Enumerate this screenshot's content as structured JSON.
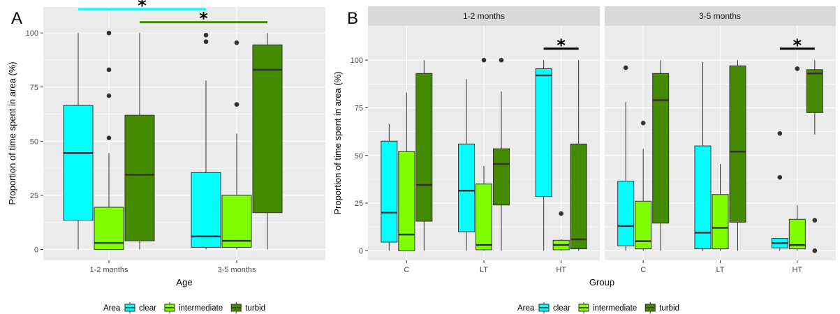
{
  "colors": {
    "panel_bg": "#ebebeb",
    "grid": "#ffffff",
    "strip_bg": "#d9d9d9",
    "box_outline": "#333333",
    "median": "#333333",
    "outlier": "#333333"
  },
  "legend": {
    "title": "Area",
    "items": [
      {
        "label": "clear",
        "color": "#00ffff"
      },
      {
        "label": "intermediate",
        "color": "#7fff00"
      },
      {
        "label": "turbid",
        "color": "#458b00"
      }
    ]
  },
  "chart_data": [
    {
      "panel": "A",
      "type": "boxplot",
      "xlabel": "Age",
      "ylabel": "Proportion of time spent in area (%)",
      "ylim": [
        -5,
        112
      ],
      "yticks": [
        0,
        25,
        50,
        75,
        100
      ],
      "categories": [
        "1-2 months",
        "3-5 months"
      ],
      "groups": [
        {
          "category": "1-2 months",
          "area": "clear",
          "color": "#00ffff",
          "min": 0,
          "q1": 13.5,
          "median": 44.5,
          "q3": 66.5,
          "max": 100,
          "outliers": []
        },
        {
          "category": "1-2 months",
          "area": "intermediate",
          "color": "#7fff00",
          "min": 0,
          "q1": 0,
          "median": 3,
          "q3": 19.5,
          "max": 44.5,
          "outliers": [
            51.5,
            71,
            83,
            100
          ]
        },
        {
          "category": "1-2 months",
          "area": "turbid",
          "color": "#458b00",
          "min": 0,
          "q1": 4,
          "median": 34.5,
          "q3": 62,
          "max": 100,
          "outliers": []
        },
        {
          "category": "3-5 months",
          "area": "clear",
          "color": "#00ffff",
          "min": 0,
          "q1": 1,
          "median": 6,
          "q3": 35.5,
          "max": 78,
          "outliers": [
            96,
            99
          ]
        },
        {
          "category": "3-5 months",
          "area": "intermediate",
          "color": "#7fff00",
          "min": 0,
          "q1": 1,
          "median": 4,
          "q3": 25,
          "max": 53.5,
          "outliers": [
            67,
            95.5
          ]
        },
        {
          "category": "3-5 months",
          "area": "turbid",
          "color": "#458b00",
          "min": 0,
          "q1": 17,
          "median": 83,
          "q3": 94.5,
          "max": 100,
          "outliers": []
        }
      ],
      "significance": [
        {
          "label": "*",
          "from_group": 0,
          "to_group": 3,
          "y": 111,
          "color": "#00ffff"
        },
        {
          "label": "*",
          "from_group": 2,
          "to_group": 5,
          "y": 105,
          "color": "#458b00"
        }
      ]
    },
    {
      "panel": "B",
      "type": "boxplot",
      "xlabel": "Group",
      "ylabel": "Proportion of time spent in area (%)",
      "ylim": [
        -5,
        118
      ],
      "yticks": [
        0,
        25,
        50,
        75,
        100
      ],
      "facets": [
        {
          "title": "1-2 months",
          "categories": [
            "C",
            "LT",
            "HT"
          ],
          "groups": [
            {
              "category": "C",
              "area": "clear",
              "color": "#00ffff",
              "min": 0,
              "q1": 4.5,
              "median": 20,
              "q3": 57.5,
              "max": 66.5,
              "outliers": []
            },
            {
              "category": "C",
              "area": "intermediate",
              "color": "#7fff00",
              "min": 0,
              "q1": 0,
              "median": 8.5,
              "q3": 52,
              "max": 83,
              "outliers": []
            },
            {
              "category": "C",
              "area": "turbid",
              "color": "#458b00",
              "min": 0,
              "q1": 15.5,
              "median": 34.5,
              "q3": 93,
              "max": 100,
              "outliers": []
            },
            {
              "category": "LT",
              "area": "clear",
              "color": "#00ffff",
              "min": 0,
              "q1": 10,
              "median": 31.5,
              "q3": 56,
              "max": 90,
              "outliers": []
            },
            {
              "category": "LT",
              "area": "intermediate",
              "color": "#7fff00",
              "min": 0,
              "q1": 0.5,
              "median": 3,
              "q3": 35,
              "max": 44.5,
              "outliers": [
                100
              ]
            },
            {
              "category": "LT",
              "area": "turbid",
              "color": "#458b00",
              "min": 0,
              "q1": 24,
              "median": 45.5,
              "q3": 53.5,
              "max": 83.5,
              "outliers": [
                100
              ]
            },
            {
              "category": "HT",
              "area": "clear",
              "color": "#00ffff",
              "min": 0,
              "q1": 28.5,
              "median": 92,
              "q3": 95.5,
              "max": 100,
              "outliers": []
            },
            {
              "category": "HT",
              "area": "intermediate",
              "color": "#7fff00",
              "min": 0,
              "q1": 0.5,
              "median": 3,
              "q3": 5.5,
              "max": 6,
              "outliers": [
                19.5
              ]
            },
            {
              "category": "HT",
              "area": "turbid",
              "color": "#458b00",
              "min": 0,
              "q1": 1,
              "median": 6,
              "q3": 56,
              "max": 100,
              "outliers": []
            }
          ],
          "significance": [
            {
              "label": "*",
              "from_group": 6,
              "to_group": 8,
              "y": 106,
              "color": "#000000"
            }
          ]
        },
        {
          "title": "3-5 months",
          "categories": [
            "C",
            "LT",
            "HT"
          ],
          "groups": [
            {
              "category": "C",
              "area": "clear",
              "color": "#00ffff",
              "min": 0,
              "q1": 2.5,
              "median": 13,
              "q3": 36.5,
              "max": 78,
              "outliers": [
                96
              ]
            },
            {
              "category": "C",
              "area": "intermediate",
              "color": "#7fff00",
              "min": 0,
              "q1": 1,
              "median": 5,
              "q3": 26,
              "max": 53.5,
              "outliers": [
                67
              ]
            },
            {
              "category": "C",
              "area": "turbid",
              "color": "#458b00",
              "min": 0,
              "q1": 14.5,
              "median": 79,
              "q3": 93,
              "max": 100,
              "outliers": []
            },
            {
              "category": "LT",
              "area": "clear",
              "color": "#00ffff",
              "min": 0,
              "q1": 1,
              "median": 9.5,
              "q3": 55,
              "max": 99,
              "outliers": []
            },
            {
              "category": "LT",
              "area": "intermediate",
              "color": "#7fff00",
              "min": 0,
              "q1": 1,
              "median": 12,
              "q3": 29.5,
              "max": 45.5,
              "outliers": []
            },
            {
              "category": "LT",
              "area": "turbid",
              "color": "#458b00",
              "min": 0,
              "q1": 15,
              "median": 52,
              "q3": 97,
              "max": 100,
              "outliers": []
            },
            {
              "category": "HT",
              "area": "clear",
              "color": "#00ffff",
              "min": 0,
              "q1": 1.5,
              "median": 4,
              "q3": 6.5,
              "max": 6.5,
              "outliers": [
                38.5,
                61.5
              ]
            },
            {
              "category": "HT",
              "area": "intermediate",
              "color": "#7fff00",
              "min": 0,
              "q1": 1,
              "median": 3,
              "q3": 16.5,
              "max": 24,
              "outliers": [
                95.5
              ]
            },
            {
              "category": "HT",
              "area": "turbid",
              "color": "#458b00",
              "min": 61,
              "q1": 72.5,
              "median": 93,
              "q3": 95,
              "max": 100,
              "outliers": [
                0,
                16
              ]
            }
          ],
          "significance": [
            {
              "label": "*",
              "from_group": 6,
              "to_group": 8,
              "y": 106,
              "color": "#000000"
            }
          ]
        }
      ]
    }
  ]
}
